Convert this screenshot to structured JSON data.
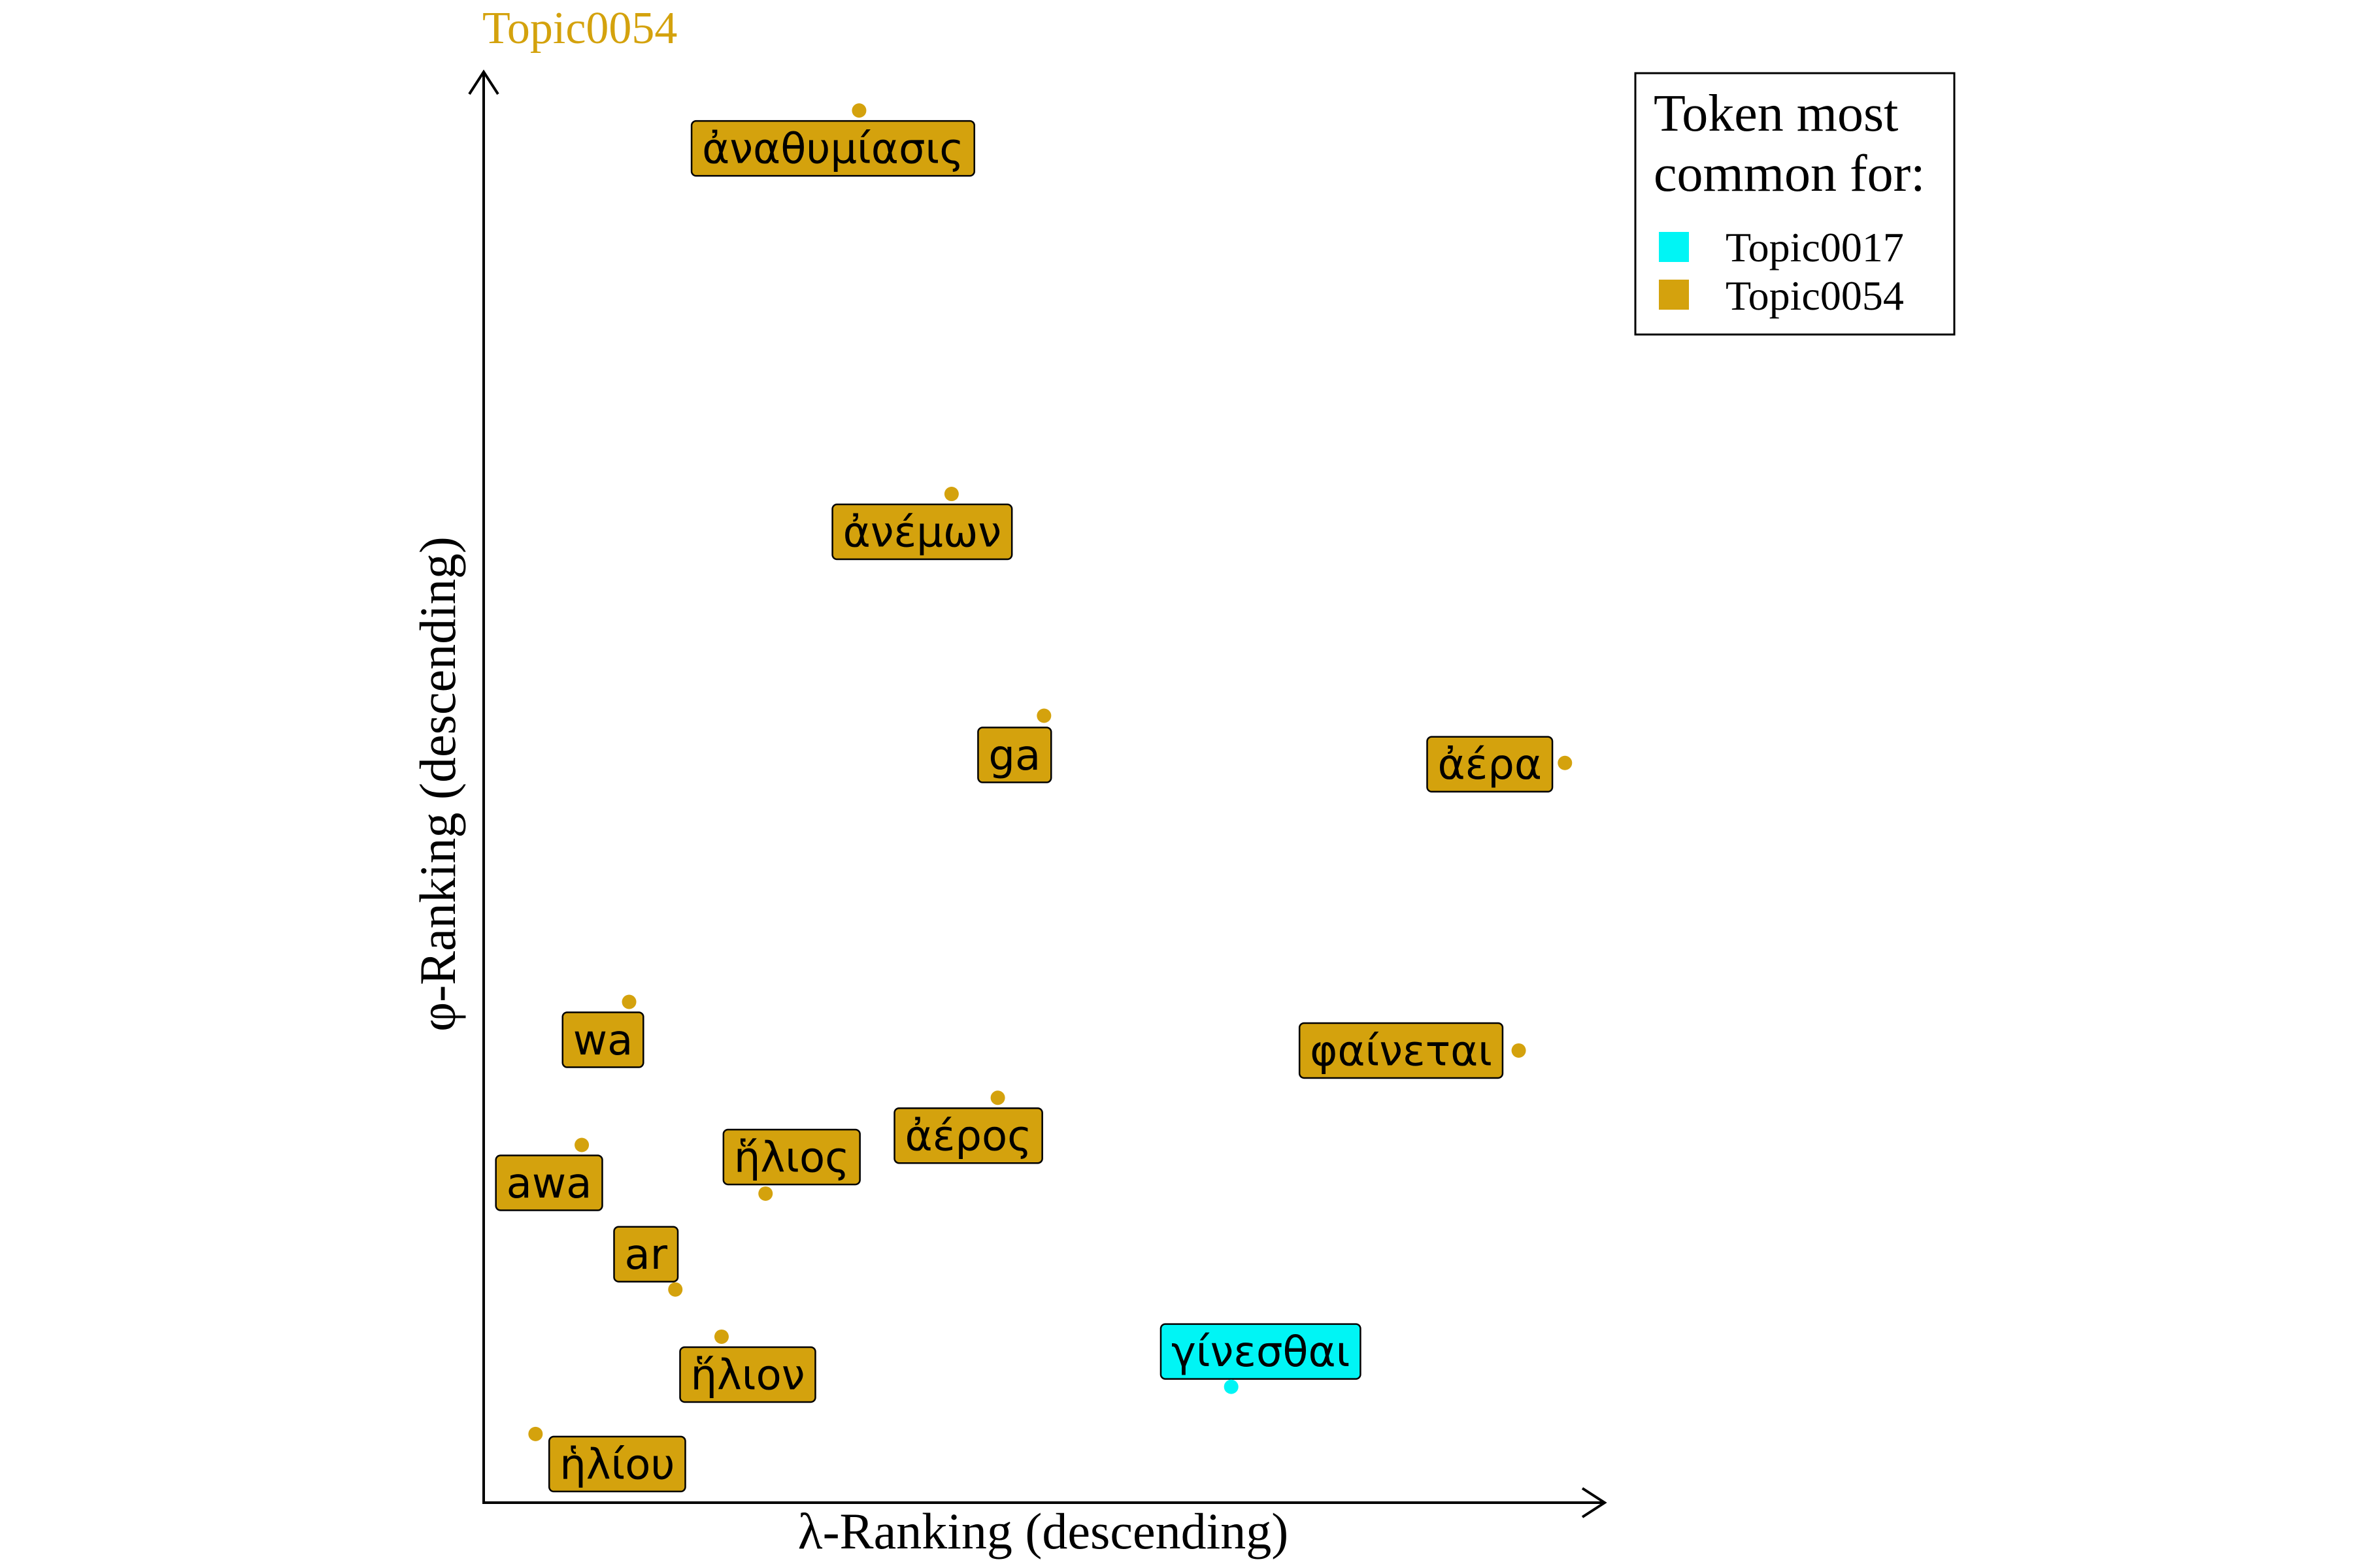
{
  "chart_data": {
    "type": "scatter",
    "title": "Topic0054",
    "title_color": "#d4a20d",
    "xlabel": "λ-Ranking (descending)",
    "ylabel": "φ-Ranking (descending)",
    "xlim": [
      0,
      100
    ],
    "ylim": [
      0,
      100
    ],
    "grid": false,
    "legend": {
      "title_lines": [
        "Token most",
        "common for:"
      ],
      "placement": "top-right",
      "entries": [
        {
          "name": "Topic0017",
          "color": "#00f5f5"
        },
        {
          "name": "Topic0054",
          "color": "#d4a20d"
        }
      ]
    },
    "points": [
      {
        "label": "ἀναθυμίασις",
        "x": 33.3,
        "y": 97.3,
        "topic": "Topic0054"
      },
      {
        "label": "ἀνέμων",
        "x": 41.5,
        "y": 70.5,
        "topic": "Topic0054"
      },
      {
        "label": "ga",
        "x": 49.7,
        "y": 55.0,
        "topic": "Topic0054"
      },
      {
        "label": "ἀέρα",
        "x": 95.9,
        "y": 51.7,
        "topic": "Topic0054"
      },
      {
        "label": "wa",
        "x": 12.9,
        "y": 35.0,
        "topic": "Topic0054"
      },
      {
        "label": "φαίνεται",
        "x": 91.8,
        "y": 31.6,
        "topic": "Topic0054"
      },
      {
        "label": "ἀέρος",
        "x": 45.6,
        "y": 28.3,
        "topic": "Topic0054"
      },
      {
        "label": "awa",
        "x": 8.7,
        "y": 25.0,
        "topic": "Topic0054"
      },
      {
        "label": "ἥλιος",
        "x": 25.0,
        "y": 21.6,
        "topic": "Topic0054"
      },
      {
        "label": "ar",
        "x": 17.0,
        "y": 14.9,
        "topic": "Topic0054"
      },
      {
        "label": "ἥλιον",
        "x": 21.1,
        "y": 11.6,
        "topic": "Topic0054"
      },
      {
        "label": "γίνεσθαι",
        "x": 66.3,
        "y": 8.1,
        "topic": "Topic0017"
      },
      {
        "label": "ἡλίου",
        "x": 4.6,
        "y": 4.8,
        "topic": "Topic0054"
      }
    ]
  }
}
